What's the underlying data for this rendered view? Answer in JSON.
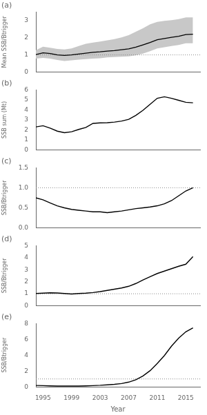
{
  "chart_data": [
    {
      "type": "line",
      "title": "(a)",
      "ylabel": "Mean SSB/Btrigger",
      "x": [
        1994,
        1995,
        1996,
        1997,
        1998,
        1999,
        2000,
        2001,
        2002,
        2003,
        2004,
        2005,
        2006,
        2007,
        2008,
        2009,
        2010,
        2011,
        2012,
        2013,
        2014,
        2015,
        2016
      ],
      "values": [
        1.02,
        1.12,
        1.08,
        1.0,
        0.97,
        1.0,
        1.05,
        1.1,
        1.15,
        1.18,
        1.22,
        1.25,
        1.3,
        1.35,
        1.45,
        1.58,
        1.72,
        1.88,
        1.95,
        2.02,
        2.08,
        2.18,
        2.2
      ],
      "color": "#000000",
      "band": {
        "lower": [
          0.78,
          0.82,
          0.78,
          0.7,
          0.64,
          0.68,
          0.72,
          0.75,
          0.78,
          0.8,
          0.85,
          0.88,
          0.9,
          0.92,
          0.98,
          1.08,
          1.22,
          1.38,
          1.45,
          1.52,
          1.58,
          1.68,
          1.68
        ],
        "upper": [
          1.28,
          1.48,
          1.42,
          1.35,
          1.32,
          1.38,
          1.52,
          1.65,
          1.72,
          1.78,
          1.85,
          1.92,
          2.02,
          2.15,
          2.35,
          2.55,
          2.78,
          2.92,
          2.98,
          3.02,
          3.08,
          3.18,
          3.18
        ],
        "color": "#c8c8c8"
      },
      "hline": {
        "value": 1.0,
        "color": "#888888",
        "line_style": "dotted"
      },
      "xlim": [
        1994,
        2017
      ],
      "xticks": [
        1995,
        1999,
        2003,
        2007,
        2011,
        2015
      ],
      "ylim": [
        0,
        3.5
      ],
      "yticks": [
        0,
        1,
        2,
        3
      ],
      "grid": false,
      "tick_labels": "y"
    },
    {
      "type": "line",
      "title": "(b)",
      "ylabel": "SSB sum (Mt)",
      "x": [
        1994,
        1995,
        1996,
        1997,
        1998,
        1999,
        2000,
        2001,
        2002,
        2003,
        2004,
        2005,
        2006,
        2007,
        2008,
        2009,
        2010,
        2011,
        2012,
        2013,
        2014,
        2015,
        2016
      ],
      "values": [
        2.3,
        2.42,
        2.18,
        1.88,
        1.72,
        1.82,
        2.05,
        2.25,
        2.65,
        2.7,
        2.72,
        2.78,
        2.88,
        3.05,
        3.45,
        3.95,
        4.55,
        5.15,
        5.3,
        5.15,
        4.95,
        4.75,
        4.7
      ],
      "color": "#000000",
      "xlim": [
        1994,
        2017
      ],
      "xticks": [
        1995,
        1999,
        2003,
        2007,
        2011,
        2015
      ],
      "ylim": [
        0,
        6
      ],
      "yticks": [
        0,
        1,
        2,
        3,
        4,
        5,
        6
      ],
      "grid": false,
      "tick_labels": "y"
    },
    {
      "type": "line",
      "title": "(c)",
      "ylabel": "SSB/Btrigger",
      "x": [
        1994,
        1995,
        1996,
        1997,
        1998,
        1999,
        2000,
        2001,
        2002,
        2003,
        2004,
        2005,
        2006,
        2007,
        2008,
        2009,
        2010,
        2011,
        2012,
        2013,
        2014,
        2015,
        2016
      ],
      "values": [
        0.75,
        0.7,
        0.62,
        0.55,
        0.5,
        0.46,
        0.44,
        0.42,
        0.4,
        0.4,
        0.38,
        0.4,
        0.42,
        0.45,
        0.48,
        0.5,
        0.52,
        0.55,
        0.6,
        0.68,
        0.8,
        0.92,
        1.0
      ],
      "color": "#000000",
      "hline": {
        "value": 1.0,
        "color": "#888888",
        "line_style": "dotted"
      },
      "xlim": [
        1994,
        2017
      ],
      "xticks": [
        1995,
        1999,
        2003,
        2007,
        2011,
        2015
      ],
      "ylim": [
        0.0,
        1.5
      ],
      "yticks": [
        {
          "value": 0,
          "label": "0.0"
        },
        0.5,
        {
          "value": 1,
          "label": "1.0"
        },
        1.5
      ],
      "grid": false,
      "tick_labels": "y"
    },
    {
      "type": "line",
      "title": "(d)",
      "ylabel": "SSB/Btrigger",
      "x": [
        1994,
        1995,
        1996,
        1997,
        1998,
        1999,
        2000,
        2001,
        2002,
        2003,
        2004,
        2005,
        2006,
        2007,
        2008,
        2009,
        2010,
        2011,
        2012,
        2013,
        2014,
        2015,
        2016
      ],
      "values": [
        1.02,
        1.05,
        1.08,
        1.06,
        1.02,
        0.98,
        1.02,
        1.05,
        1.1,
        1.18,
        1.28,
        1.38,
        1.48,
        1.62,
        1.85,
        2.15,
        2.42,
        2.68,
        2.88,
        3.08,
        3.28,
        3.45,
        4.08
      ],
      "color": "#000000",
      "hline": {
        "value": 1.0,
        "color": "#888888",
        "line_style": "dotted"
      },
      "xlim": [
        1994,
        2017
      ],
      "xticks": [
        1995,
        1999,
        2003,
        2007,
        2011,
        2015
      ],
      "ylim": [
        0,
        5
      ],
      "yticks": [
        0,
        1,
        2,
        3,
        4,
        5
      ],
      "grid": false,
      "tick_labels": "y"
    },
    {
      "type": "line",
      "title": "(e)",
      "ylabel": "SSB/Btrigger",
      "xlabel": "Year",
      "x": [
        1994,
        1995,
        1996,
        1997,
        1998,
        1999,
        2000,
        2001,
        2002,
        2003,
        2004,
        2005,
        2006,
        2007,
        2008,
        2009,
        2010,
        2011,
        2012,
        2013,
        2014,
        2015,
        2016
      ],
      "values": [
        0.18,
        0.16,
        0.13,
        0.11,
        0.1,
        0.1,
        0.11,
        0.13,
        0.16,
        0.2,
        0.26,
        0.32,
        0.42,
        0.6,
        0.9,
        1.38,
        2.05,
        2.95,
        3.95,
        5.15,
        6.15,
        6.95,
        7.45
      ],
      "color": "#000000",
      "hline": {
        "value": 1.0,
        "color": "#888888",
        "line_style": "dotted"
      },
      "xlim": [
        1994,
        2017
      ],
      "xticks": [
        1995,
        1999,
        2003,
        2007,
        2011,
        2015
      ],
      "ylim": [
        0,
        8
      ],
      "yticks": [
        0,
        2,
        4,
        6,
        8
      ],
      "grid": false
    }
  ]
}
